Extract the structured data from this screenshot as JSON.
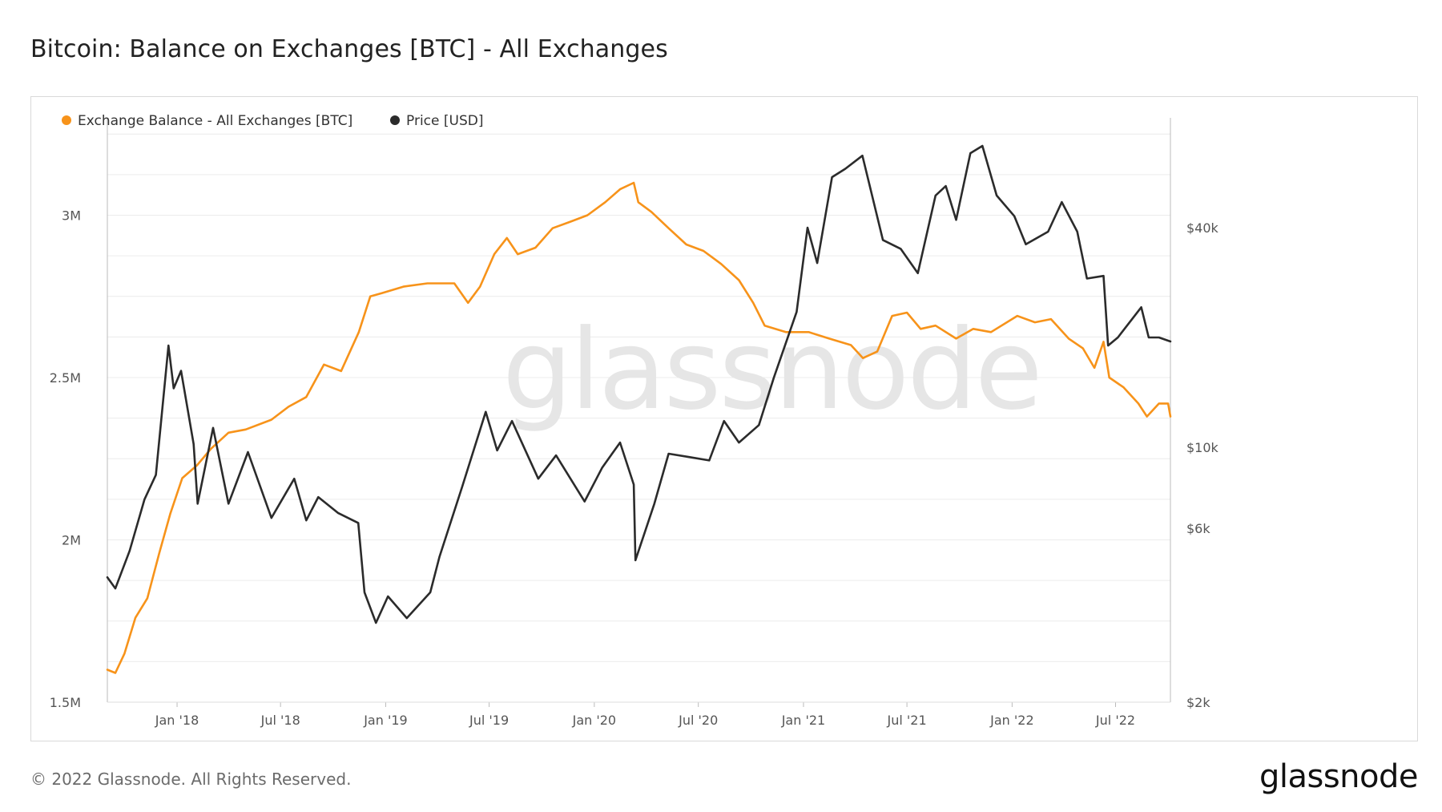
{
  "header": {
    "title": "Bitcoin: Balance on Exchanges [BTC] - All Exchanges"
  },
  "footer": {
    "copyright": "© 2022 Glassnode. All Rights Reserved.",
    "logo": "glassnode"
  },
  "watermark": "glassnode",
  "colors": {
    "balance": "#f7931a",
    "price": "#2b2b2b",
    "grid": "#ececec"
  },
  "chart_data": {
    "type": "line",
    "title": "Bitcoin: Balance on Exchanges [BTC] - All Exchanges",
    "legend_position": "top-left",
    "grid": true,
    "x_range": [
      "2017-09-01",
      "2022-10-05"
    ],
    "x_ticks": [
      {
        "date": "2018-01-01",
        "label": "Jan '18"
      },
      {
        "date": "2018-07-01",
        "label": "Jul '18"
      },
      {
        "date": "2019-01-01",
        "label": "Jan '19"
      },
      {
        "date": "2019-07-01",
        "label": "Jul '19"
      },
      {
        "date": "2020-01-01",
        "label": "Jan '20"
      },
      {
        "date": "2020-07-01",
        "label": "Jul '20"
      },
      {
        "date": "2021-01-01",
        "label": "Jan '21"
      },
      {
        "date": "2021-07-01",
        "label": "Jul '21"
      },
      {
        "date": "2022-01-01",
        "label": "Jan '22"
      },
      {
        "date": "2022-07-01",
        "label": "Jul '22"
      }
    ],
    "y_left": {
      "range": [
        1500000,
        3300000
      ],
      "ticks": [
        {
          "value": 1500000,
          "label": "1.5M"
        },
        {
          "value": 2000000,
          "label": "2M"
        },
        {
          "value": 2500000,
          "label": "2.5M"
        },
        {
          "value": 3000000,
          "label": "3M"
        }
      ]
    },
    "y_right": {
      "scale": "log",
      "range": [
        2000,
        80000
      ],
      "ticks": [
        {
          "value": 2000,
          "label": "$2k"
        },
        {
          "value": 6000,
          "label": "$6k"
        },
        {
          "value": 10000,
          "label": "$10k"
        },
        {
          "value": 40000,
          "label": "$40k"
        }
      ]
    },
    "series": [
      {
        "name": "Exchange Balance - All Exchanges [BTC]",
        "axis": "left",
        "points": [
          [
            "2017-09-01",
            1600000
          ],
          [
            "2017-09-15",
            1590000
          ],
          [
            "2017-10-01",
            1650000
          ],
          [
            "2017-10-20",
            1760000
          ],
          [
            "2017-11-10",
            1820000
          ],
          [
            "2017-12-01",
            1960000
          ],
          [
            "2017-12-20",
            2080000
          ],
          [
            "2018-01-10",
            2190000
          ],
          [
            "2018-02-05",
            2230000
          ],
          [
            "2018-03-01",
            2280000
          ],
          [
            "2018-04-01",
            2330000
          ],
          [
            "2018-05-01",
            2340000
          ],
          [
            "2018-06-15",
            2370000
          ],
          [
            "2018-07-15",
            2410000
          ],
          [
            "2018-08-15",
            2440000
          ],
          [
            "2018-09-15",
            2540000
          ],
          [
            "2018-10-15",
            2520000
          ],
          [
            "2018-11-15",
            2640000
          ],
          [
            "2018-12-05",
            2750000
          ],
          [
            "2018-12-25",
            2760000
          ],
          [
            "2019-02-01",
            2780000
          ],
          [
            "2019-03-15",
            2790000
          ],
          [
            "2019-05-01",
            2790000
          ],
          [
            "2019-05-25",
            2730000
          ],
          [
            "2019-06-15",
            2780000
          ],
          [
            "2019-07-10",
            2880000
          ],
          [
            "2019-08-01",
            2930000
          ],
          [
            "2019-08-20",
            2880000
          ],
          [
            "2019-09-20",
            2900000
          ],
          [
            "2019-10-20",
            2960000
          ],
          [
            "2019-11-20",
            2980000
          ],
          [
            "2019-12-20",
            3000000
          ],
          [
            "2020-01-20",
            3040000
          ],
          [
            "2020-02-15",
            3080000
          ],
          [
            "2020-03-10",
            3100000
          ],
          [
            "2020-03-18",
            3040000
          ],
          [
            "2020-04-10",
            3010000
          ],
          [
            "2020-05-10",
            2960000
          ],
          [
            "2020-06-10",
            2910000
          ],
          [
            "2020-07-10",
            2890000
          ],
          [
            "2020-08-10",
            2850000
          ],
          [
            "2020-09-10",
            2800000
          ],
          [
            "2020-10-05",
            2730000
          ],
          [
            "2020-10-25",
            2660000
          ],
          [
            "2020-12-01",
            2640000
          ],
          [
            "2021-01-10",
            2640000
          ],
          [
            "2021-02-15",
            2620000
          ],
          [
            "2021-03-25",
            2600000
          ],
          [
            "2021-04-15",
            2560000
          ],
          [
            "2021-05-10",
            2580000
          ],
          [
            "2021-06-05",
            2690000
          ],
          [
            "2021-07-01",
            2700000
          ],
          [
            "2021-07-25",
            2650000
          ],
          [
            "2021-08-20",
            2660000
          ],
          [
            "2021-09-25",
            2620000
          ],
          [
            "2021-10-25",
            2650000
          ],
          [
            "2021-11-25",
            2640000
          ],
          [
            "2022-01-10",
            2690000
          ],
          [
            "2022-02-10",
            2670000
          ],
          [
            "2022-03-10",
            2680000
          ],
          [
            "2022-04-10",
            2620000
          ],
          [
            "2022-05-05",
            2590000
          ],
          [
            "2022-05-25",
            2530000
          ],
          [
            "2022-06-10",
            2610000
          ],
          [
            "2022-06-20",
            2500000
          ],
          [
            "2022-07-15",
            2470000
          ],
          [
            "2022-08-10",
            2420000
          ],
          [
            "2022-08-25",
            2380000
          ],
          [
            "2022-09-15",
            2420000
          ],
          [
            "2022-10-01",
            2420000
          ],
          [
            "2022-10-05",
            2380000
          ]
        ]
      },
      {
        "name": "Price [USD]",
        "axis": "right",
        "points": [
          [
            "2017-09-01",
            4400
          ],
          [
            "2017-09-15",
            4100
          ],
          [
            "2017-10-10",
            5200
          ],
          [
            "2017-11-05",
            7200
          ],
          [
            "2017-11-25",
            8400
          ],
          [
            "2017-12-17",
            19000
          ],
          [
            "2017-12-26",
            14500
          ],
          [
            "2018-01-08",
            16200
          ],
          [
            "2018-01-30",
            10200
          ],
          [
            "2018-02-06",
            7000
          ],
          [
            "2018-03-05",
            11300
          ],
          [
            "2018-04-01",
            7000
          ],
          [
            "2018-05-05",
            9700
          ],
          [
            "2018-06-15",
            6400
          ],
          [
            "2018-07-25",
            8200
          ],
          [
            "2018-08-15",
            6300
          ],
          [
            "2018-09-05",
            7300
          ],
          [
            "2018-10-10",
            6600
          ],
          [
            "2018-11-14",
            6200
          ],
          [
            "2018-11-25",
            4000
          ],
          [
            "2018-12-15",
            3300
          ],
          [
            "2019-01-05",
            3900
          ],
          [
            "2019-02-07",
            3400
          ],
          [
            "2019-03-20",
            4000
          ],
          [
            "2019-04-05",
            5000
          ],
          [
            "2019-05-15",
            7800
          ],
          [
            "2019-06-25",
            12500
          ],
          [
            "2019-07-15",
            9800
          ],
          [
            "2019-08-10",
            11800
          ],
          [
            "2019-09-25",
            8200
          ],
          [
            "2019-10-26",
            9500
          ],
          [
            "2019-12-15",
            7100
          ],
          [
            "2020-01-15",
            8800
          ],
          [
            "2020-02-15",
            10300
          ],
          [
            "2020-03-10",
            7900
          ],
          [
            "2020-03-13",
            4900
          ],
          [
            "2020-04-15",
            7000
          ],
          [
            "2020-05-10",
            9600
          ],
          [
            "2020-06-15",
            9400
          ],
          [
            "2020-07-20",
            9200
          ],
          [
            "2020-08-15",
            11800
          ],
          [
            "2020-09-10",
            10300
          ],
          [
            "2020-10-15",
            11500
          ],
          [
            "2020-11-10",
            15500
          ],
          [
            "2020-12-20",
            23500
          ],
          [
            "2021-01-08",
            40000
          ],
          [
            "2021-01-25",
            32000
          ],
          [
            "2021-02-20",
            55000
          ],
          [
            "2021-03-15",
            58000
          ],
          [
            "2021-04-14",
            63000
          ],
          [
            "2021-05-20",
            37000
          ],
          [
            "2021-06-20",
            35000
          ],
          [
            "2021-07-20",
            30000
          ],
          [
            "2021-08-20",
            49000
          ],
          [
            "2021-09-07",
            52000
          ],
          [
            "2021-09-25",
            42000
          ],
          [
            "2021-10-20",
            64000
          ],
          [
            "2021-11-10",
            67000
          ],
          [
            "2021-12-05",
            49000
          ],
          [
            "2022-01-05",
            43000
          ],
          [
            "2022-01-25",
            36000
          ],
          [
            "2022-03-05",
            39000
          ],
          [
            "2022-03-29",
            47000
          ],
          [
            "2022-04-25",
            39000
          ],
          [
            "2022-05-12",
            29000
          ],
          [
            "2022-06-10",
            29500
          ],
          [
            "2022-06-18",
            19000
          ],
          [
            "2022-07-05",
            20000
          ],
          [
            "2022-08-15",
            24200
          ],
          [
            "2022-08-28",
            20000
          ],
          [
            "2022-09-15",
            20000
          ],
          [
            "2022-10-05",
            19500
          ]
        ]
      }
    ]
  }
}
